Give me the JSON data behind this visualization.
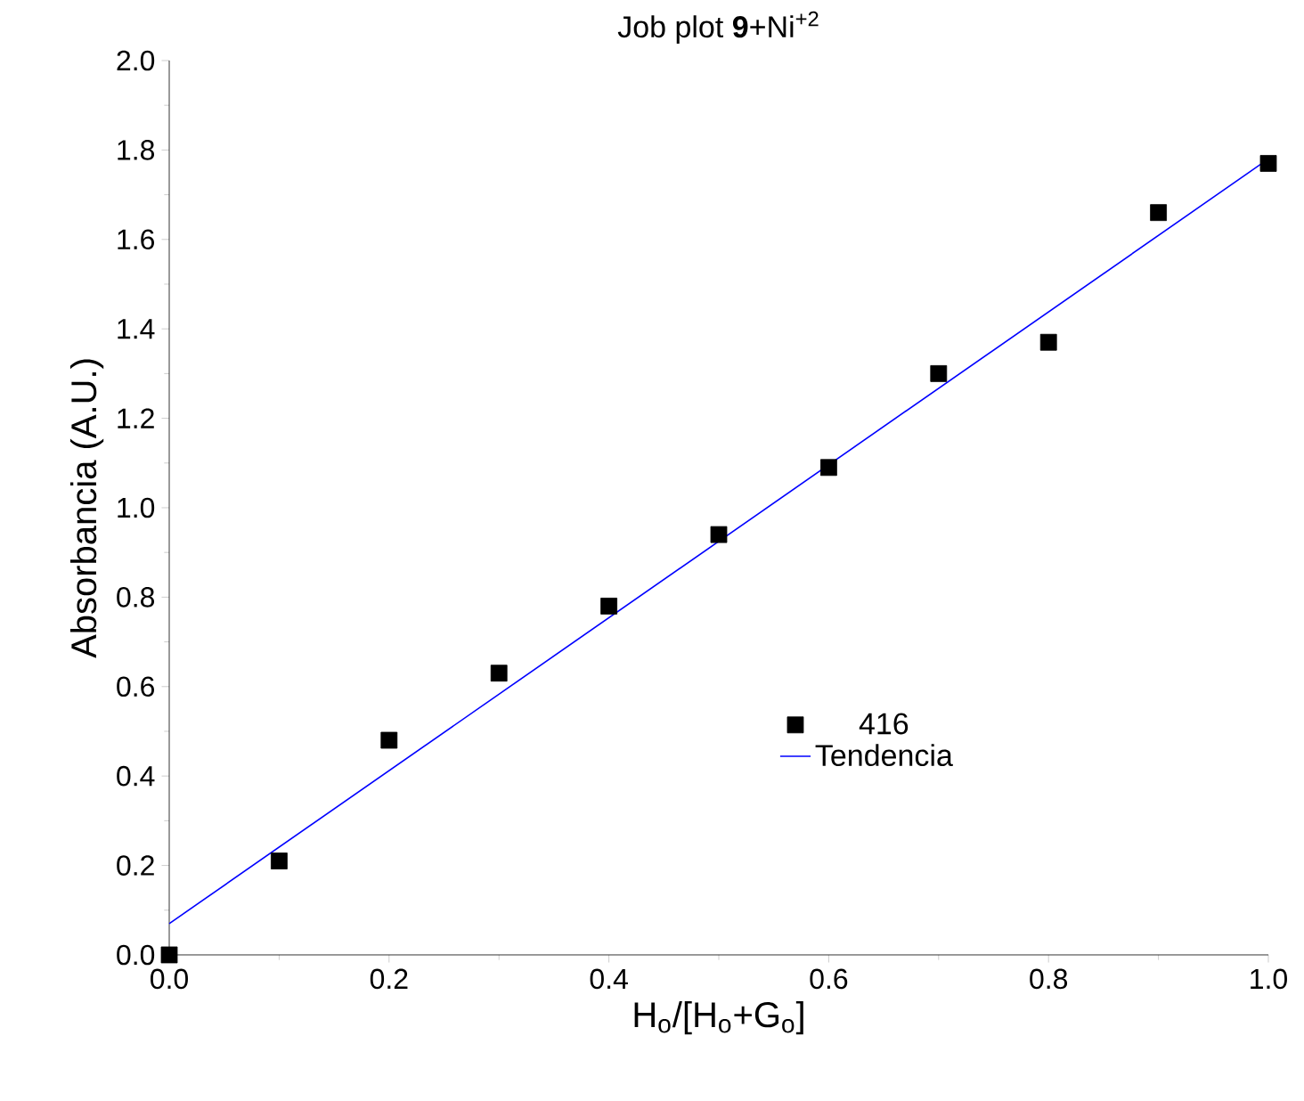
{
  "chart_data": {
    "type": "scatter",
    "title": "Job plot **9**+Ni$^{+2}$",
    "xlabel": "H$_{o}$/[H$_{o}$+G$_{o}$]",
    "ylabel": "Absorbancia (A.U.)",
    "x": [
      0.0,
      0.1,
      0.2,
      0.3,
      0.4,
      0.5,
      0.6,
      0.7,
      0.8,
      0.9,
      1.0
    ],
    "series": [
      {
        "name": "416",
        "color": "#000000",
        "marker": "square",
        "values": [
          0.0,
          0.21,
          0.48,
          0.63,
          0.78,
          0.94,
          1.09,
          1.3,
          1.37,
          1.66,
          1.77
        ]
      },
      {
        "name": "Tendencia",
        "type": "line",
        "color": "#0000ff",
        "line_style": "solid",
        "x": [
          0.0,
          1.0
        ],
        "values": [
          0.07,
          1.78
        ]
      }
    ],
    "xlim": [
      0,
      1
    ],
    "ylim": [
      0,
      2
    ],
    "xticks": [
      {
        "value": 0,
        "label": "0.0"
      },
      0.2,
      0.4,
      0.6,
      0.8,
      {
        "value": 1,
        "label": "1.0"
      }
    ],
    "yticks": [
      {
        "value": 0,
        "label": "0.0"
      },
      0.2,
      0.4,
      0.6,
      0.8,
      {
        "value": 1,
        "label": "1.0"
      },
      1.2,
      1.4,
      1.6,
      1.8,
      {
        "value": 2,
        "label": "2.0"
      }
    ],
    "grid": false,
    "legend": "bottom"
  }
}
